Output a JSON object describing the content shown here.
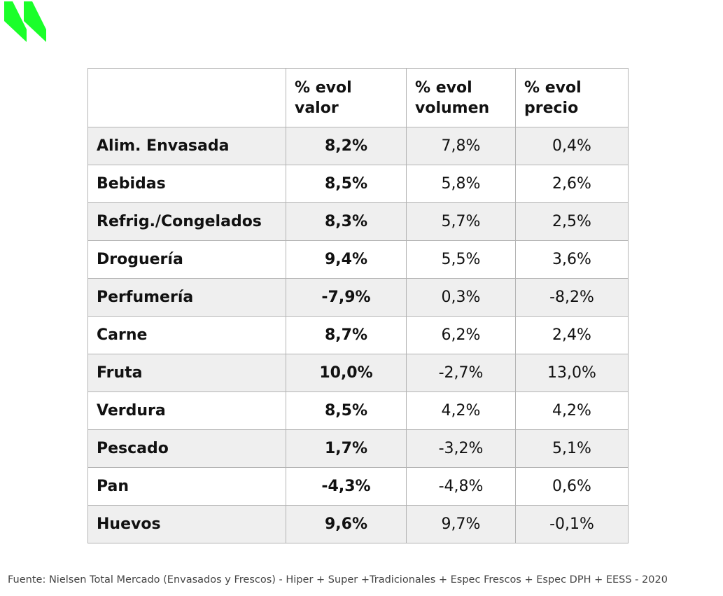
{
  "brand": {
    "logo_icon": "double-slash-logo-icon",
    "accent_color": "#1aff2a"
  },
  "table": {
    "headers": [
      "",
      "% evol valor",
      "% evol volumen",
      "% evol precio"
    ],
    "rows": [
      {
        "category": "Alim. Envasada",
        "valor": "8,2%",
        "volumen": "7,8%",
        "precio": "0,4%"
      },
      {
        "category": "Bebidas",
        "valor": "8,5%",
        "volumen": "5,8%",
        "precio": "2,6%"
      },
      {
        "category": "Refrig./Congelados",
        "valor": "8,3%",
        "volumen": "5,7%",
        "precio": "2,5%"
      },
      {
        "category": "Droguería",
        "valor": "9,4%",
        "volumen": "5,5%",
        "precio": "3,6%"
      },
      {
        "category": "Perfumería",
        "valor": "-7,9%",
        "volumen": "0,3%",
        "precio": "-8,2%"
      },
      {
        "category": "Carne",
        "valor": "8,7%",
        "volumen": "6,2%",
        "precio": "2,4%"
      },
      {
        "category": "Fruta",
        "valor": "10,0%",
        "volumen": "-2,7%",
        "precio": "13,0%"
      },
      {
        "category": "Verdura",
        "valor": "8,5%",
        "volumen": "4,2%",
        "precio": "4,2%"
      },
      {
        "category": "Pescado",
        "valor": "1,7%",
        "volumen": "-3,2%",
        "precio": "5,1%"
      },
      {
        "category": "Pan",
        "valor": "-4,3%",
        "volumen": "-4,8%",
        "precio": "0,6%"
      },
      {
        "category": "Huevos",
        "valor": "9,6%",
        "volumen": "9,7%",
        "precio": "-0,1%"
      }
    ]
  },
  "footer": {
    "source": "Fuente: Nielsen Total Mercado (Envasados y Frescos) - Hiper + Super +Tradicionales +  Espec Frescos + Espec DPH + EESS - 2020"
  }
}
